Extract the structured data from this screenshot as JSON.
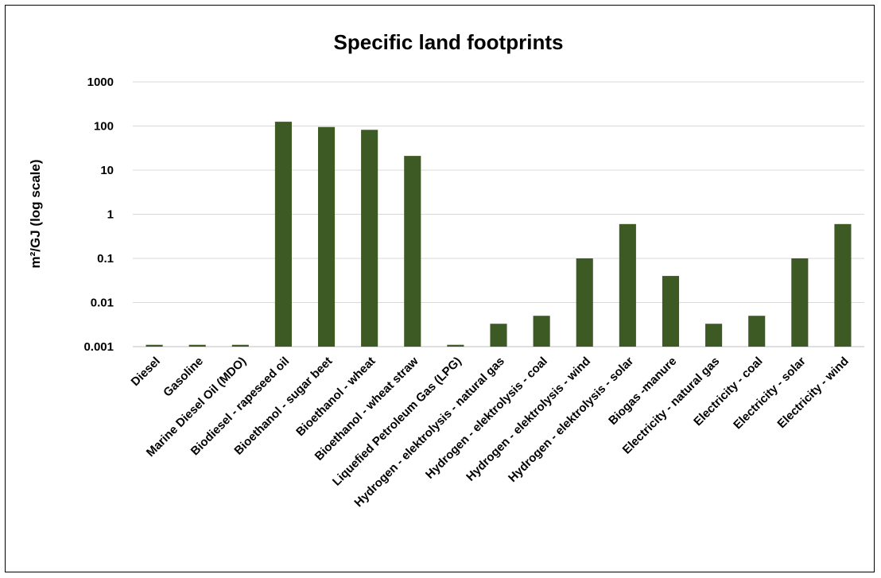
{
  "chart_data": {
    "type": "bar",
    "title": "Specific land footprints",
    "ylabel": "m²/GJ (log scale)",
    "xlabel": "",
    "yscale": "log",
    "ylim": [
      0.001,
      1000
    ],
    "yticks": [
      "1000",
      "100",
      "10",
      "1",
      "0.1",
      "0.01",
      "0.001"
    ],
    "grid": true,
    "bar_color": "#3d5a25",
    "categories": [
      "Diesel",
      "Gasoline",
      "Marine Diesel Oil (MDO)",
      "Biodiesel - rapeseed oil",
      "Bioethanol - sugar beet",
      "Bioethanol - wheat",
      "Bioethanol - wheat straw",
      "Liquefied Petroleum Gas (LPG)",
      "Hydrogen - elektrolysis - natural gas",
      "Hydrogen - elektrolysis - coal",
      "Hydrogen - elektrolysis - wind",
      "Hydrogen - elektrolysis - solar",
      "Biogas -manure",
      "Electricity - natural gas",
      "Electricity - coal",
      "Electricity - solar",
      "Electricity - wind"
    ],
    "values": [
      0.0011,
      0.0011,
      0.0011,
      125,
      95,
      82,
      21,
      0.0011,
      0.0033,
      0.005,
      0.1,
      0.6,
      0.04,
      0.0033,
      0.005,
      0.1,
      0.6
    ]
  }
}
